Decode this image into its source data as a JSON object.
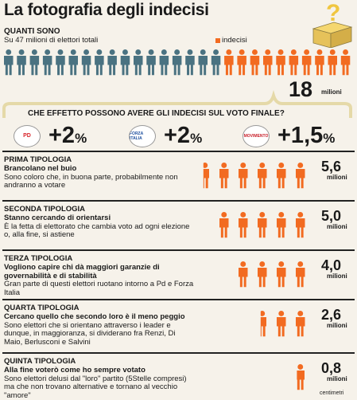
{
  "title": "La fotografia degli indecisi",
  "how_many": {
    "heading": "QUANTI SONO",
    "subtitle": "Su 47 milioni di elettori totali",
    "legend": "indecisi",
    "total_people": 27,
    "undecided_people": 10,
    "value": "18",
    "unit": "milioni"
  },
  "effect": {
    "heading": "CHE EFFETTO POSSONO AVERE GLI INDECISI SUL VOTO FINALE?",
    "parties": [
      {
        "logo": "PD",
        "pct": "+2",
        "sign": "%"
      },
      {
        "logo": "FORZA ITALIA",
        "pct": "+2",
        "sign": "%"
      },
      {
        "logo": "MOVIMENTO",
        "pct": "+1,5",
        "sign": "%"
      }
    ]
  },
  "types": [
    {
      "title": "PRIMA TIPOLOGIA",
      "lead": "Brancolano nel buio",
      "text": "Sono coloro che, in buona parte, probabilmente non andranno a votare",
      "value": "5,6",
      "unit": "milioni",
      "figures": 5.6
    },
    {
      "title": "SECONDA TIPOLOGIA",
      "lead": "Stanno cercando di orientarsi",
      "text": "È la fetta di elettorato che cambia voto ad ogni elezione o, alla fine, si astiene",
      "value": "5,0",
      "unit": "milioni",
      "figures": 5
    },
    {
      "title": "TERZA TIPOLOGIA",
      "lead": "Vogliono capire chi dà maggiori garanzie di governabilità e di stabilità",
      "text": "Gran parte di questi elettori ruotano intorno a Pd e Forza Italia",
      "value": "4,0",
      "unit": "milioni",
      "figures": 4
    },
    {
      "title": "QUARTA TIPOLOGIA",
      "lead": "Cercano quello che secondo loro è il meno peggio",
      "text": "Sono elettori che si orientano attraverso i leader e dunque, in maggioranza, si dividerano fra Renzi, Di Maio, Berlusconi e Salvini",
      "value": "2,6",
      "unit": "milioni",
      "figures": 2.6
    },
    {
      "title": "QUINTA TIPOLOGIA",
      "lead": "Alla fine voterò come ho sempre votato",
      "text": "Sono elettori delusi dal \"loro\" partito (5Stelle compresi) ma che non trovano alternative e tornano al vecchio \"amore\"",
      "value": "0,8",
      "unit": "milioni",
      "figures": 0.8
    }
  ],
  "credit": "centimetri",
  "colors": {
    "grey": "#4a7281",
    "orange": "#f26b21"
  }
}
